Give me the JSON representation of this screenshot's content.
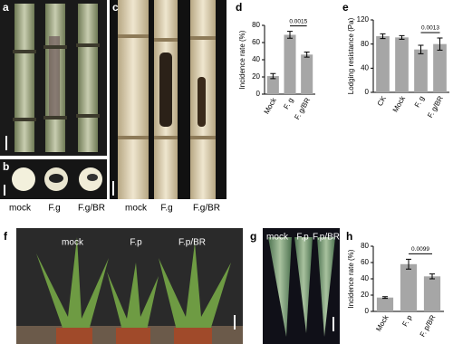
{
  "panels": [
    {
      "label": "a"
    },
    {
      "label": "b",
      "texts": [
        "mock",
        "F.g",
        "F.g/BR"
      ]
    },
    {
      "label": "c",
      "texts": [
        "mock",
        "F.g",
        "F.g/BR"
      ]
    },
    {
      "label": "d"
    },
    {
      "label": "e"
    },
    {
      "label": "f",
      "texts": [
        "mock",
        "F.p",
        "F.p/BR"
      ]
    },
    {
      "label": "g",
      "texts": [
        "mock",
        "F.p",
        "F.p/BR"
      ]
    },
    {
      "label": "h"
    }
  ],
  "chart_data": [
    {
      "type": "bar",
      "ylabel": "Incidence rate (%)",
      "categories": [
        "Mock",
        "F. g",
        "F. g/BR"
      ],
      "values": [
        21,
        69,
        46
      ],
      "errors": [
        3,
        4,
        3
      ],
      "color": "#a6a6a6",
      "ylim": [
        0,
        80
      ],
      "yticks": [
        0,
        20,
        40,
        60,
        80
      ],
      "annotations": [
        {
          "text": "0.0015",
          "between": [
            1,
            2
          ]
        }
      ]
    },
    {
      "type": "bar",
      "ylabel": "Lodging resistance (Pa)",
      "categories": [
        "CK",
        "Mock",
        "F. g",
        "F. g/BR"
      ],
      "values": [
        93,
        91,
        71,
        80
      ],
      "errors": [
        4,
        3,
        7,
        10
      ],
      "color": "#a6a6a6",
      "ylim": [
        0,
        120
      ],
      "yticks": [
        0,
        40,
        80,
        120
      ],
      "annotations": [
        {
          "text": "0.0013",
          "between": [
            2,
            3
          ]
        }
      ]
    },
    {
      "type": "bar",
      "ylabel": "Incidence rate (%)",
      "categories": [
        "Mock",
        "F. p",
        "F. p/BR"
      ],
      "values": [
        17,
        58,
        43
      ],
      "errors": [
        1,
        6,
        3
      ],
      "color": "#a6a6a6",
      "ylim": [
        0,
        80
      ],
      "yticks": [
        0,
        20,
        40,
        60,
        80
      ],
      "annotations": [
        {
          "text": "0.0099",
          "between": [
            1,
            2
          ]
        }
      ]
    }
  ]
}
